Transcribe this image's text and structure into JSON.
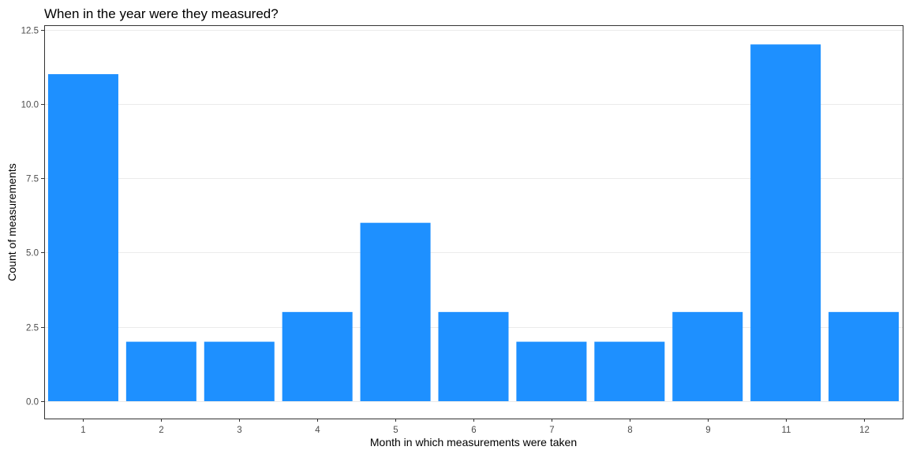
{
  "chart_data": {
    "type": "bar",
    "title": "When in the year were they measured?",
    "xlabel": "Month in which measurements were taken",
    "ylabel": "Count of measurements",
    "categories": [
      "1",
      "2",
      "3",
      "4",
      "5",
      "6",
      "7",
      "8",
      "9",
      "11",
      "12"
    ],
    "values": [
      11,
      2,
      2,
      3,
      6,
      3,
      2,
      2,
      3,
      12,
      3
    ],
    "ylim": [
      0,
      12.5
    ],
    "yticks": [
      0,
      2.5,
      5,
      7.5,
      10,
      12.5
    ],
    "ytick_labels": [
      "0.0",
      "2.5",
      "5.0",
      "7.5",
      "10.0",
      "12.5"
    ],
    "bar_color": "#1E90FF",
    "grid": true,
    "legend": "none"
  }
}
